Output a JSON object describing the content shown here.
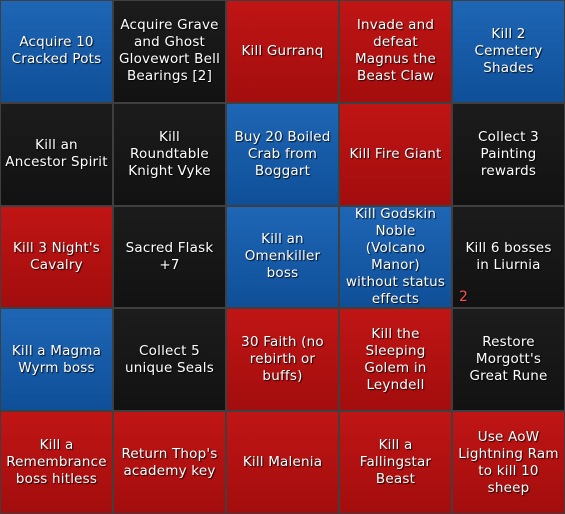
{
  "colors": {
    "red": "#b31010",
    "blue": "#1459a8",
    "black": "#161616",
    "counter": "#ff4d4d"
  },
  "board": {
    "cells": [
      {
        "label": "Acquire 10 Cracked Pots",
        "color": "blue",
        "counter": ""
      },
      {
        "label": "Acquire Grave and Ghost Glovewort Bell Bearings [2]",
        "color": "black",
        "counter": ""
      },
      {
        "label": "Kill Gurranq",
        "color": "red",
        "counter": ""
      },
      {
        "label": "Invade and defeat Magnus the Beast Claw",
        "color": "red",
        "counter": ""
      },
      {
        "label": "Kill 2 Cemetery Shades",
        "color": "blue",
        "counter": ""
      },
      {
        "label": "Kill an Ancestor Spirit",
        "color": "black",
        "counter": ""
      },
      {
        "label": "Kill Roundtable Knight Vyke",
        "color": "black",
        "counter": ""
      },
      {
        "label": "Buy 20 Boiled Crab from Boggart",
        "color": "blue",
        "counter": ""
      },
      {
        "label": "Kill Fire Giant",
        "color": "red",
        "counter": ""
      },
      {
        "label": "Collect 3 Painting rewards",
        "color": "black",
        "counter": ""
      },
      {
        "label": "Kill 3 Night's Cavalry",
        "color": "red",
        "counter": ""
      },
      {
        "label": "Sacred Flask +7",
        "color": "black",
        "counter": ""
      },
      {
        "label": "Kill an Omenkiller boss",
        "color": "blue",
        "counter": ""
      },
      {
        "label": "Kill Godskin Noble (Volcano Manor) without status effects",
        "color": "blue",
        "counter": ""
      },
      {
        "label": "Kill 6 bosses in Liurnia",
        "color": "black",
        "counter": "2"
      },
      {
        "label": "Kill a Magma Wyrm boss",
        "color": "blue",
        "counter": ""
      },
      {
        "label": "Collect 5 unique Seals",
        "color": "black",
        "counter": ""
      },
      {
        "label": "30 Faith (no rebirth or buffs)",
        "color": "red",
        "counter": ""
      },
      {
        "label": "Kill the Sleeping Golem in Leyndell",
        "color": "red",
        "counter": ""
      },
      {
        "label": "Restore Morgott's Great Rune",
        "color": "black",
        "counter": ""
      },
      {
        "label": "Kill a Remembrance boss hitless",
        "color": "red",
        "counter": ""
      },
      {
        "label": "Return Thop's academy key",
        "color": "red",
        "counter": ""
      },
      {
        "label": "Kill Malenia",
        "color": "red",
        "counter": ""
      },
      {
        "label": "Kill a Fallingstar Beast",
        "color": "red",
        "counter": ""
      },
      {
        "label": "Use AoW Lightning Ram to kill 10 sheep",
        "color": "red",
        "counter": ""
      }
    ]
  }
}
